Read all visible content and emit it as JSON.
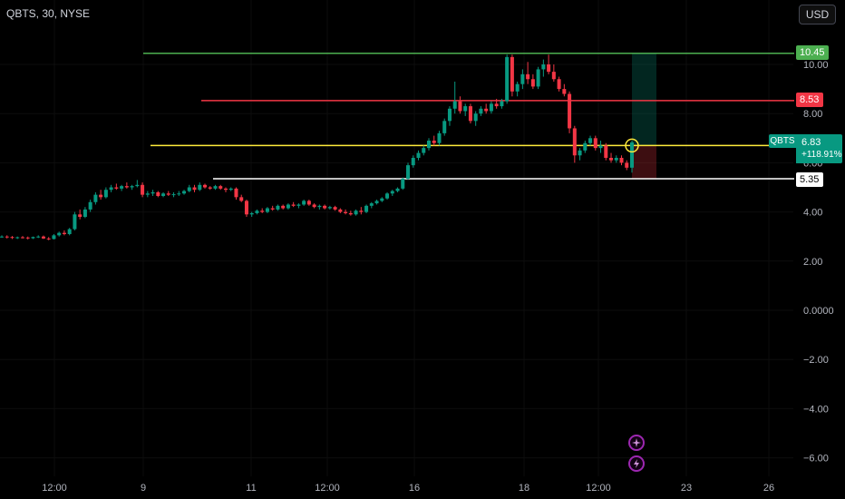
{
  "header": {
    "symbol_title": "QBTS, 30, NYSE",
    "currency_button": "USD"
  },
  "price_lines": {
    "target_label": "10.45",
    "mid_label": "8.53",
    "support_label": "5.35"
  },
  "current_price": {
    "symbol": "QBTS",
    "price": "6.83",
    "change": "+118.91%"
  },
  "colors": {
    "background": "#000000",
    "up": "#089981",
    "down": "#f23645",
    "target_line": "#4caf50",
    "mid_line": "#f23645",
    "entry_line": "#ffeb3b",
    "support_line": "#ffffff"
  },
  "icons": {
    "alert_1": "rocket-icon",
    "alert_2": "lightning-icon"
  },
  "chart_data": {
    "type": "candlestick",
    "y_axis": {
      "ticks": [
        "10.00",
        "8.00",
        "6.00",
        "4.00",
        "2.00",
        "0.0000",
        "−2.00",
        "−4.00",
        "−6.00"
      ],
      "tick_values": [
        10,
        8,
        6,
        4,
        2,
        0,
        -2,
        -4,
        -6
      ],
      "range": [
        -6.5,
        11.2
      ]
    },
    "x_axis": {
      "ticks": [
        "12:00",
        "9",
        "11",
        "12:00",
        "16",
        "18",
        "12:00",
        "23",
        "26"
      ]
    },
    "horizontal_levels": [
      {
        "value": 10.45,
        "color": "#4caf50"
      },
      {
        "value": 8.53,
        "color": "#f23645"
      },
      {
        "value": 6.7,
        "color": "#ffeb3b"
      },
      {
        "value": 5.35,
        "color": "#ffffff"
      }
    ],
    "candles": [
      [
        3.0,
        3.05,
        2.95,
        3.0
      ],
      [
        3.0,
        3.05,
        2.92,
        2.98
      ],
      [
        2.98,
        3.02,
        2.9,
        2.95
      ],
      [
        2.95,
        3.0,
        2.9,
        2.97
      ],
      [
        2.97,
        3.02,
        2.92,
        2.96
      ],
      [
        2.96,
        3.0,
        2.88,
        2.93
      ],
      [
        2.93,
        3.0,
        2.9,
        2.98
      ],
      [
        2.98,
        3.05,
        2.94,
        3.0
      ],
      [
        3.0,
        3.04,
        2.9,
        2.92
      ],
      [
        2.92,
        2.98,
        2.85,
        2.9
      ],
      [
        2.9,
        3.1,
        2.88,
        3.05
      ],
      [
        3.05,
        3.2,
        3.0,
        3.15
      ],
      [
        3.15,
        3.25,
        3.05,
        3.1
      ],
      [
        3.1,
        3.35,
        3.05,
        3.3
      ],
      [
        3.3,
        4.0,
        3.25,
        3.9
      ],
      [
        3.9,
        4.1,
        3.7,
        3.8
      ],
      [
        3.8,
        4.2,
        3.75,
        4.1
      ],
      [
        4.1,
        4.5,
        4.0,
        4.4
      ],
      [
        4.4,
        4.8,
        4.3,
        4.7
      ],
      [
        4.7,
        4.9,
        4.5,
        4.6
      ],
      [
        4.6,
        5.0,
        4.55,
        4.9
      ],
      [
        4.9,
        5.1,
        4.8,
        5.0
      ],
      [
        5.0,
        5.15,
        4.9,
        4.95
      ],
      [
        4.95,
        5.1,
        4.85,
        5.05
      ],
      [
        5.05,
        5.2,
        4.95,
        5.0
      ],
      [
        5.0,
        5.1,
        4.9,
        5.05
      ],
      [
        5.05,
        5.3,
        5.0,
        5.1
      ],
      [
        5.1,
        5.2,
        4.6,
        4.7
      ],
      [
        4.7,
        4.85,
        4.6,
        4.75
      ],
      [
        4.75,
        4.9,
        4.65,
        4.8
      ],
      [
        4.8,
        4.85,
        4.6,
        4.65
      ],
      [
        4.65,
        4.8,
        4.6,
        4.75
      ],
      [
        4.75,
        4.85,
        4.65,
        4.7
      ],
      [
        4.7,
        4.8,
        4.6,
        4.72
      ],
      [
        4.72,
        4.85,
        4.65,
        4.75
      ],
      [
        4.75,
        4.9,
        4.7,
        4.85
      ],
      [
        4.85,
        5.1,
        4.8,
        5.0
      ],
      [
        5.0,
        5.1,
        4.8,
        4.9
      ],
      [
        4.9,
        5.2,
        4.85,
        5.1
      ],
      [
        5.1,
        5.15,
        4.95,
        5.0
      ],
      [
        5.0,
        5.05,
        4.9,
        4.95
      ],
      [
        4.95,
        5.1,
        4.9,
        5.05
      ],
      [
        5.05,
        5.1,
        4.9,
        4.95
      ],
      [
        4.95,
        5.0,
        4.8,
        4.9
      ],
      [
        4.9,
        5.0,
        4.85,
        4.95
      ],
      [
        4.95,
        5.0,
        4.5,
        4.6
      ],
      [
        4.6,
        4.7,
        4.4,
        4.45
      ],
      [
        4.45,
        4.5,
        3.8,
        3.9
      ],
      [
        3.9,
        4.0,
        3.8,
        3.95
      ],
      [
        3.95,
        4.1,
        3.9,
        4.05
      ],
      [
        4.05,
        4.15,
        3.95,
        4.0
      ],
      [
        4.0,
        4.2,
        3.95,
        4.15
      ],
      [
        4.15,
        4.25,
        4.05,
        4.1
      ],
      [
        4.1,
        4.3,
        4.05,
        4.25
      ],
      [
        4.25,
        4.3,
        4.1,
        4.15
      ],
      [
        4.15,
        4.35,
        4.1,
        4.3
      ],
      [
        4.3,
        4.4,
        4.2,
        4.25
      ],
      [
        4.25,
        4.35,
        4.15,
        4.3
      ],
      [
        4.3,
        4.5,
        4.25,
        4.45
      ],
      [
        4.45,
        4.5,
        4.25,
        4.3
      ],
      [
        4.3,
        4.35,
        4.15,
        4.2
      ],
      [
        4.2,
        4.3,
        4.1,
        4.25
      ],
      [
        4.25,
        4.3,
        4.1,
        4.15
      ],
      [
        4.15,
        4.25,
        4.1,
        4.2
      ],
      [
        4.2,
        4.25,
        4.05,
        4.1
      ],
      [
        4.1,
        4.15,
        3.95,
        4.0
      ],
      [
        4.0,
        4.1,
        3.9,
        3.95
      ],
      [
        3.95,
        4.05,
        3.85,
        3.9
      ],
      [
        3.9,
        4.1,
        3.85,
        4.05
      ],
      [
        4.05,
        4.2,
        3.9,
        4.0
      ],
      [
        4.0,
        4.3,
        3.95,
        4.25
      ],
      [
        4.25,
        4.4,
        4.15,
        4.35
      ],
      [
        4.35,
        4.5,
        4.3,
        4.45
      ],
      [
        4.45,
        4.6,
        4.4,
        4.55
      ],
      [
        4.55,
        4.8,
        4.5,
        4.75
      ],
      [
        4.75,
        4.9,
        4.65,
        4.85
      ],
      [
        4.85,
        5.0,
        4.8,
        4.95
      ],
      [
        4.95,
        5.4,
        4.9,
        5.35
      ],
      [
        5.35,
        6.0,
        5.3,
        5.9
      ],
      [
        5.9,
        6.3,
        5.8,
        6.2
      ],
      [
        6.2,
        6.5,
        6.1,
        6.4
      ],
      [
        6.4,
        6.7,
        6.3,
        6.6
      ],
      [
        6.6,
        7.0,
        6.5,
        6.9
      ],
      [
        6.9,
        7.1,
        6.7,
        6.8
      ],
      [
        6.8,
        7.3,
        6.7,
        7.2
      ],
      [
        7.2,
        7.8,
        7.1,
        7.7
      ],
      [
        7.7,
        8.3,
        7.5,
        8.2
      ],
      [
        8.2,
        9.3,
        8.0,
        8.5
      ],
      [
        8.5,
        8.7,
        8.0,
        8.1
      ],
      [
        8.1,
        8.4,
        7.9,
        8.3
      ],
      [
        8.3,
        8.4,
        7.6,
        7.7
      ],
      [
        7.7,
        8.1,
        7.5,
        8.0
      ],
      [
        8.0,
        8.3,
        7.9,
        8.2
      ],
      [
        8.2,
        8.4,
        8.0,
        8.1
      ],
      [
        8.1,
        8.5,
        8.0,
        8.4
      ],
      [
        8.4,
        8.6,
        8.2,
        8.3
      ],
      [
        8.3,
        8.6,
        8.2,
        8.5
      ],
      [
        8.5,
        10.4,
        8.4,
        10.3
      ],
      [
        10.3,
        10.4,
        8.7,
        8.9
      ],
      [
        8.9,
        9.3,
        8.7,
        9.2
      ],
      [
        9.2,
        9.8,
        9.0,
        9.6
      ],
      [
        9.6,
        10.1,
        9.2,
        9.4
      ],
      [
        9.4,
        9.6,
        9.0,
        9.1
      ],
      [
        9.1,
        9.9,
        9.0,
        9.8
      ],
      [
        9.8,
        10.2,
        9.5,
        10.0
      ],
      [
        10.0,
        10.4,
        9.6,
        9.7
      ],
      [
        9.7,
        10.0,
        9.3,
        9.4
      ],
      [
        9.4,
        9.5,
        8.9,
        9.0
      ],
      [
        9.0,
        9.2,
        8.7,
        8.8
      ],
      [
        8.8,
        8.9,
        7.2,
        7.4
      ],
      [
        7.4,
        7.5,
        6.0,
        6.3
      ],
      [
        6.3,
        6.6,
        6.1,
        6.5
      ],
      [
        6.5,
        6.9,
        6.4,
        6.8
      ],
      [
        6.8,
        7.1,
        6.7,
        7.0
      ],
      [
        7.0,
        7.1,
        6.5,
        6.6
      ],
      [
        6.6,
        6.9,
        6.4,
        6.7
      ],
      [
        6.7,
        6.8,
        6.1,
        6.2
      ],
      [
        6.2,
        6.4,
        6.0,
        6.1
      ],
      [
        6.1,
        6.3,
        6.0,
        6.2
      ],
      [
        6.2,
        6.3,
        5.9,
        6.0
      ],
      [
        6.0,
        6.1,
        5.7,
        5.8
      ],
      [
        5.8,
        6.9,
        5.6,
        6.83
      ]
    ]
  }
}
